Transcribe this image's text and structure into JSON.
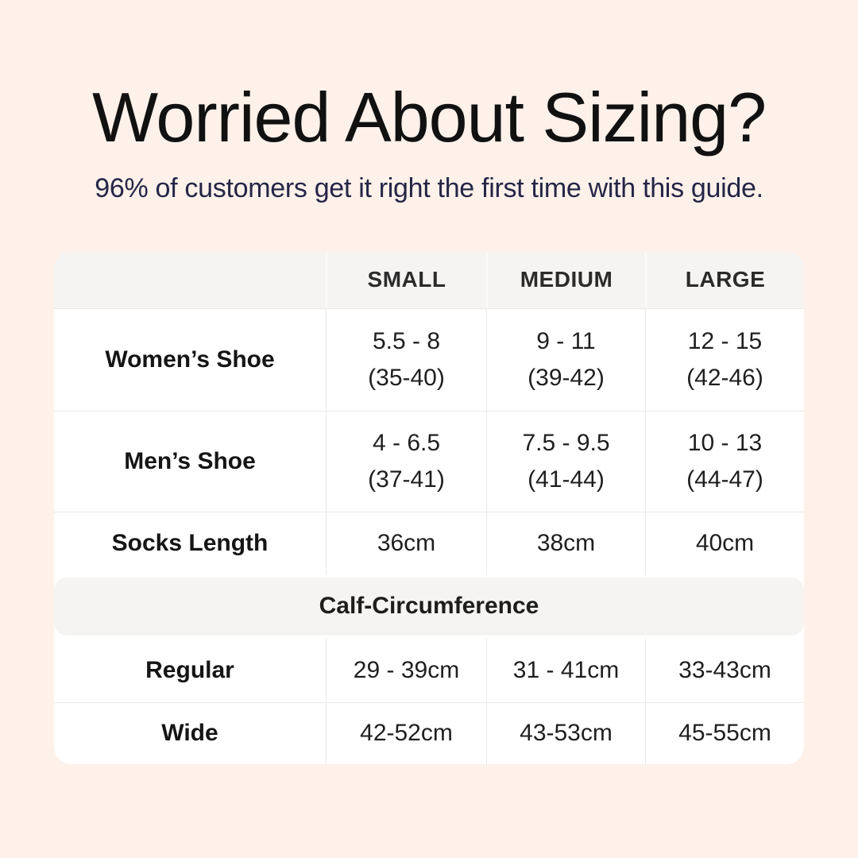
{
  "header": {
    "title": "Worried About Sizing?",
    "subtitle": "96% of customers get it right the first time with this guide."
  },
  "table": {
    "columns": [
      "",
      "SMALL",
      "MEDIUM",
      "LARGE"
    ],
    "section_label": "Calf-Circumference",
    "rows": [
      {
        "label": "Women’s Shoe",
        "values": [
          {
            "line1": "5.5 - 8",
            "line2": "(35-40)"
          },
          {
            "line1": "9 - 11",
            "line2": "(39-42)"
          },
          {
            "line1": "12 - 15",
            "line2": "(42-46)"
          }
        ]
      },
      {
        "label": "Men’s Shoe",
        "values": [
          {
            "line1": "4 - 6.5",
            "line2": "(37-41)"
          },
          {
            "line1": "7.5 - 9.5",
            "line2": "(41-44)"
          },
          {
            "line1": "10 - 13",
            "line2": "(44-47)"
          }
        ]
      },
      {
        "label": "Socks Length",
        "values": [
          "36cm",
          "38cm",
          "40cm"
        ]
      },
      {
        "label": "Regular",
        "values": [
          "29 - 39cm",
          "31 - 41cm",
          "33-43cm"
        ]
      },
      {
        "label": "Wide",
        "values": [
          "42-52cm",
          "43-53cm",
          "45-55cm"
        ]
      }
    ]
  },
  "chart_data": {
    "type": "table",
    "title": "Worried About Sizing?",
    "subtitle": "96% of customers get it right the first time with this guide.",
    "columns": [
      "",
      "SMALL",
      "MEDIUM",
      "LARGE"
    ],
    "rows": [
      [
        "Women’s Shoe",
        "5.5 - 8 (35-40)",
        "9 - 11 (39-42)",
        "12 - 15 (42-46)"
      ],
      [
        "Men’s Shoe",
        "4 - 6.5 (37-41)",
        "7.5 - 9.5 (41-44)",
        "10 - 13 (44-47)"
      ],
      [
        "Socks Length",
        "36cm",
        "38cm",
        "40cm"
      ],
      [
        "Calf-Circumference",
        "",
        "",
        ""
      ],
      [
        "Regular",
        "29 - 39cm",
        "31 - 41cm",
        "33-43cm"
      ],
      [
        "Wide",
        "42-52cm",
        "43-53cm",
        "45-55cm"
      ]
    ],
    "section_row_index": 3,
    "layout_hints": {
      "grid": "light-gray lines",
      "header_fill": "#f5f4f2",
      "card_radius_px": 22
    }
  },
  "colors": {
    "background": "#fdf1ea",
    "card": "#ffffff",
    "header_fill": "#f5f4f2",
    "grid_line": "#ebe9e7",
    "title_text": "#111111",
    "subtitle_text": "#252547",
    "body_text": "#1f1f1f"
  }
}
